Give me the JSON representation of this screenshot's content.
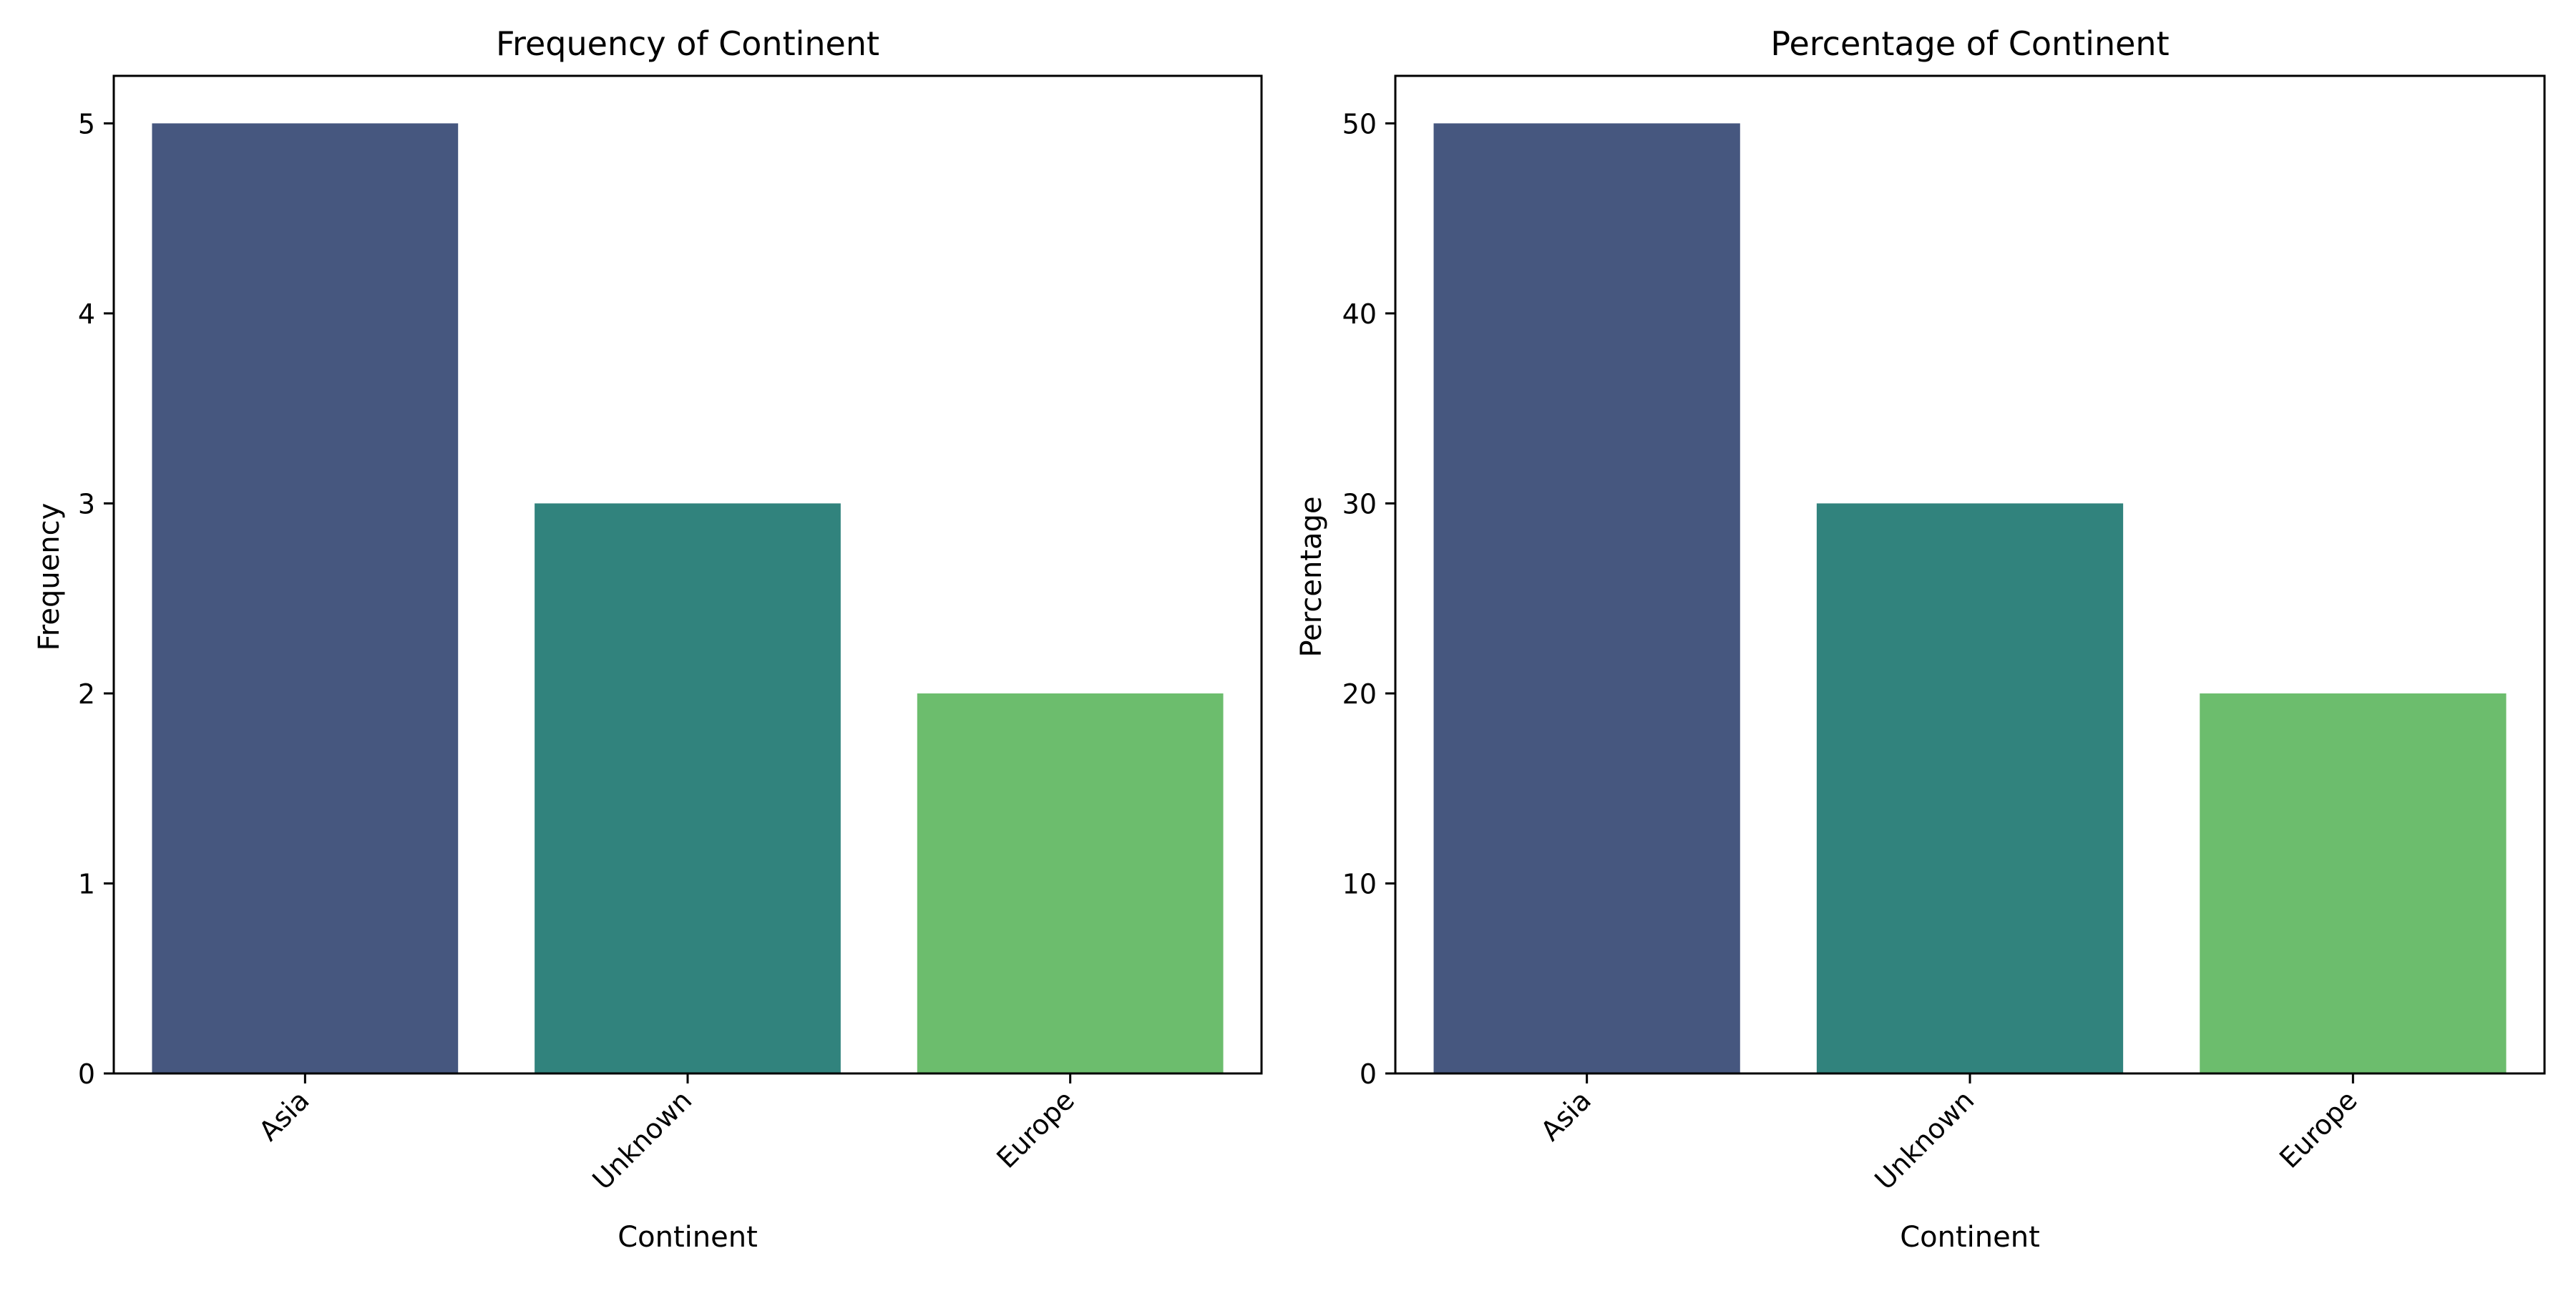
{
  "chart_data": [
    {
      "type": "bar",
      "title": "Frequency of Continent",
      "xlabel": "Continent",
      "ylabel": "Frequency",
      "categories": [
        "Asia",
        "Unknown",
        "Europe"
      ],
      "values": [
        5,
        3,
        2
      ],
      "colors": [
        "#46577f",
        "#31837d",
        "#6cbd6d"
      ],
      "ylim": [
        0,
        5.25
      ],
      "yticks": [
        0,
        1,
        2,
        3,
        4,
        5
      ],
      "grid": false,
      "legend": "none"
    },
    {
      "type": "bar",
      "title": "Percentage of Continent",
      "xlabel": "Continent",
      "ylabel": "Percentage",
      "categories": [
        "Asia",
        "Unknown",
        "Europe"
      ],
      "values": [
        50,
        30,
        20
      ],
      "colors": [
        "#46577f",
        "#31837d",
        "#6cbd6d"
      ],
      "ylim": [
        0,
        52.5
      ],
      "yticks": [
        0,
        10,
        20,
        30,
        40,
        50
      ],
      "grid": false,
      "legend": "none"
    }
  ]
}
